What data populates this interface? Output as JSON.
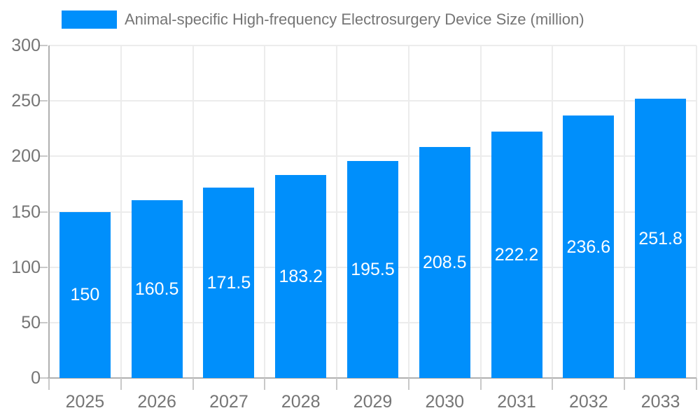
{
  "chart_data": {
    "type": "bar",
    "title": "Animal-specific High-frequency Electrosurgery Device Size (million)",
    "categories": [
      "2025",
      "2026",
      "2027",
      "2028",
      "2029",
      "2030",
      "2031",
      "2032",
      "2033"
    ],
    "values": [
      150,
      160.5,
      171.5,
      183.2,
      195.5,
      208.5,
      222.2,
      236.6,
      251.8
    ],
    "value_labels": [
      "150",
      "160.5",
      "171.5",
      "183.2",
      "195.5",
      "208.5",
      "222.2",
      "236.6",
      "251.8"
    ],
    "ytick_labels": [
      "0",
      "50",
      "100",
      "150",
      "200",
      "250",
      "300"
    ],
    "ylim": [
      0,
      300
    ],
    "ytick_step": 50,
    "grid": "on",
    "legend_position": "top-left",
    "xlabel": "",
    "ylabel": "",
    "colors": {
      "bar": "#008FFB",
      "legend_text": "#757575",
      "axis_text": "#757575",
      "bar_label_text": "#FFFFFF",
      "gridline": "#ECECEC",
      "axis_line": "#B0B0B0",
      "tick": "#C9C9C9",
      "background": "#FFFFFF"
    }
  }
}
